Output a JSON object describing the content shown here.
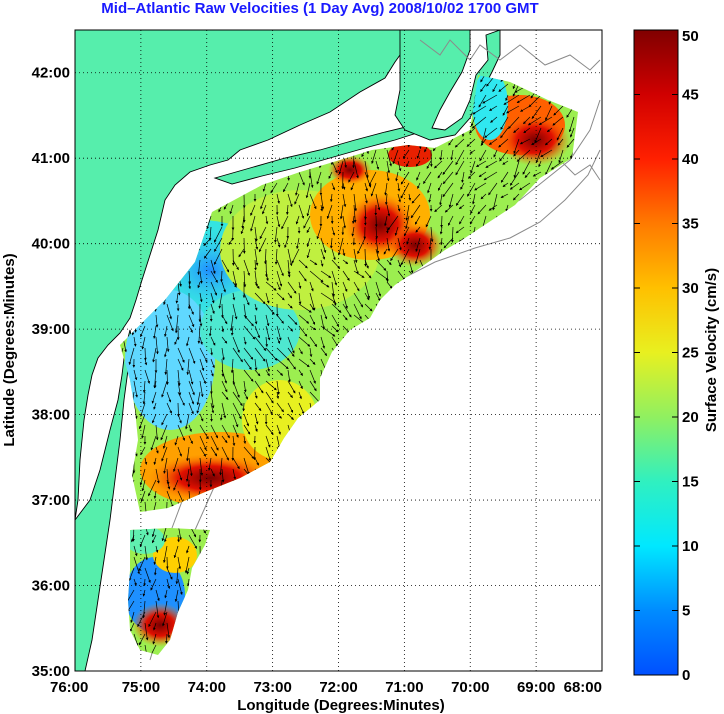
{
  "title": "Mid–Atlantic Raw Velocities (1 Day Avg) 2008/10/02 1700 GMT",
  "chart_data": {
    "type": "heatmap",
    "xlabel": "Longitude (Degrees:Minutes)",
    "ylabel": "Latitude (Degrees:Minutes)",
    "xlim": [
      -76,
      -68
    ],
    "ylim": [
      35,
      42.5
    ],
    "x_ticks": [
      "76:00",
      "75:00",
      "74:00",
      "73:00",
      "72:00",
      "71:00",
      "70:00",
      "69:00",
      "68:00"
    ],
    "y_ticks": [
      "35:00",
      "36:00",
      "37:00",
      "38:00",
      "39:00",
      "40:00",
      "41:00",
      "42:00"
    ],
    "grid": true,
    "colorbar": {
      "label": "Surface Velocity (cm/s)",
      "range": [
        0,
        50
      ],
      "ticks": [
        "0",
        "5",
        "10",
        "15",
        "20",
        "25",
        "30",
        "35",
        "40",
        "45",
        "50"
      ]
    },
    "colors": {
      "land": "#56eeac",
      "coast": "#000000",
      "isobath": "#8a8a8a",
      "title": "#1a1aff"
    }
  }
}
